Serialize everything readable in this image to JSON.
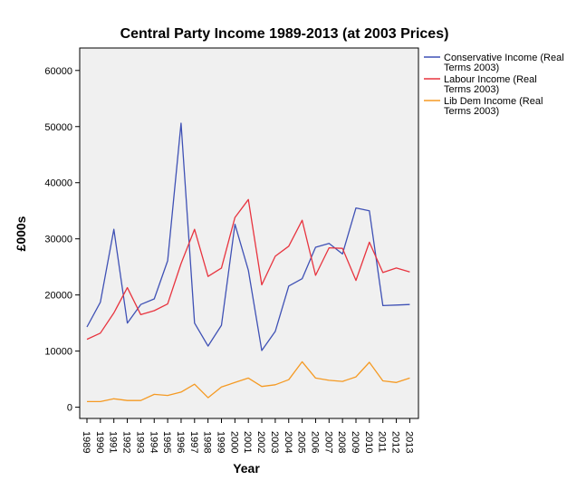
{
  "chart_data": {
    "type": "line",
    "title": "Central Party Income 1989-2013 (at 2003 Prices)",
    "xlabel": "Year",
    "ylabel": "£000s",
    "ylim": [
      -2000,
      64000
    ],
    "yticks": [
      0,
      10000,
      20000,
      30000,
      40000,
      50000,
      60000
    ],
    "grid": false,
    "legend": "top-right",
    "categories": [
      "1989",
      "1990",
      "1991",
      "1992",
      "1993",
      "1994",
      "1995",
      "1996",
      "1997",
      "1998",
      "1999",
      "2000",
      "2001",
      "2002",
      "2003",
      "2004",
      "2005",
      "2006",
      "2007",
      "2008",
      "2009",
      "2010",
      "2011",
      "2012",
      "2013"
    ],
    "series": [
      {
        "name": "Conservative Income (Real Terms 2003)",
        "legend_lines": [
          "Conservative Income (Real",
          "Terms 2003)"
        ],
        "color": "#3f51b5",
        "values": [
          14300,
          18700,
          31700,
          15000,
          18300,
          19300,
          26100,
          50600,
          15000,
          10900,
          14600,
          32600,
          24400,
          10100,
          13500,
          21600,
          22900,
          28500,
          29200,
          27300,
          35500,
          35000,
          18100,
          18200,
          18300
        ]
      },
      {
        "name": "Labour Income (Real Terms 2003)",
        "legend_lines": [
          "Labour Income (Real",
          "Terms 2003)"
        ],
        "color": "#e8343f",
        "values": [
          12100,
          13200,
          16800,
          21300,
          16500,
          17200,
          18400,
          25600,
          31700,
          23300,
          24800,
          33800,
          37000,
          21800,
          26900,
          28700,
          33300,
          23500,
          28400,
          28300,
          22600,
          29400,
          24000,
          24800,
          24100
        ]
      },
      {
        "name": "Lib Dem Income (Real Terms 2003)",
        "legend_lines": [
          "Lib Dem Income (Real",
          "Terms 2003)"
        ],
        "color": "#f59a23",
        "values": [
          1000,
          1000,
          1500,
          1200,
          1200,
          2300,
          2100,
          2700,
          4100,
          1700,
          3600,
          4400,
          5200,
          3700,
          4000,
          4900,
          8100,
          5200,
          4800,
          4600,
          5400,
          8000,
          4700,
          4400,
          5200
        ]
      }
    ]
  }
}
